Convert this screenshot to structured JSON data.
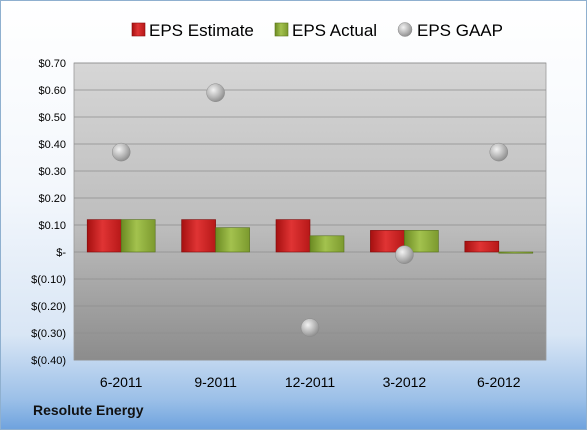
{
  "company_label": "Resolute Energy",
  "chart_data": {
    "type": "bar",
    "categories": [
      "6-2011",
      "9-2011",
      "12-2011",
      "3-2012",
      "6-2012"
    ],
    "series": [
      {
        "name": "EPS Estimate",
        "kind": "bar",
        "color": "#cc1e1e",
        "values": [
          0.12,
          0.12,
          0.12,
          0.08,
          0.04
        ]
      },
      {
        "name": "EPS Actual",
        "kind": "bar",
        "color": "#8aaa3a",
        "values": [
          0.12,
          0.09,
          0.06,
          0.08,
          0.0
        ]
      },
      {
        "name": "EPS GAAP",
        "kind": "scatter",
        "color": "#a9a9a9",
        "values": [
          0.37,
          0.59,
          -0.28,
          -0.01,
          0.37
        ]
      }
    ],
    "ylim": [
      -0.4,
      0.7
    ],
    "yticks": [
      0.7,
      0.6,
      0.5,
      0.4,
      0.3,
      0.2,
      0.1,
      0,
      -0.1,
      -0.2,
      -0.3,
      -0.4
    ],
    "ytick_labels": [
      "$0.70",
      "$0.60",
      "$0.50",
      "$0.40",
      "$0.30",
      "$0.20",
      "$0.10",
      "$-",
      "$(0.10)",
      "$(0.20)",
      "$(0.30)",
      "$(0.40)"
    ],
    "legend_position": "top",
    "grid": true
  }
}
